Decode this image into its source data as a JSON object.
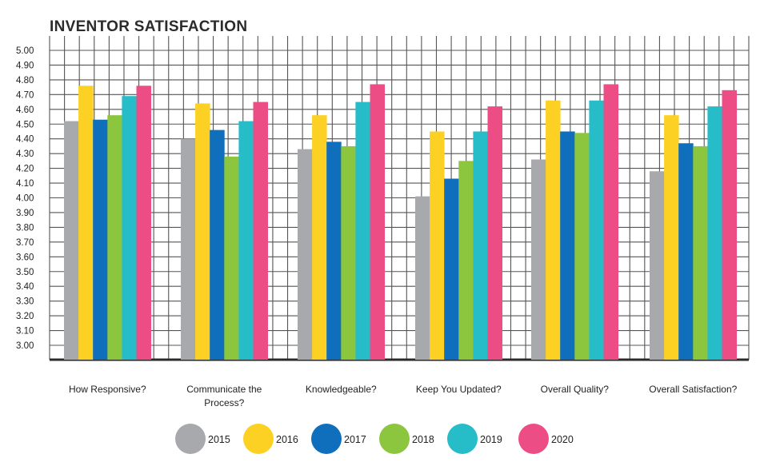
{
  "chart_data": {
    "type": "bar",
    "title": "INVENTOR SATISFACTION",
    "xlabel": "",
    "ylabel": "",
    "ylim": [
      3.0,
      5.0
    ],
    "ytick_step": 0.1,
    "grid": true,
    "legend_position": "bottom",
    "categories": [
      [
        "How Responsive?"
      ],
      [
        "Communicate the",
        "Process?"
      ],
      [
        "Knowledgeable?"
      ],
      [
        "Keep You Updated?"
      ],
      [
        "Overall Quality?"
      ],
      [
        "Overall Satisfaction?"
      ]
    ],
    "series": [
      {
        "name": "2015",
        "color": "#a7a9ac",
        "values": [
          4.52,
          4.4,
          4.33,
          4.01,
          4.26,
          4.18
        ]
      },
      {
        "name": "2016",
        "color": "#fcd124",
        "values": [
          4.76,
          4.64,
          4.56,
          4.45,
          4.66,
          4.56
        ]
      },
      {
        "name": "2017",
        "color": "#0f6fbd",
        "values": [
          4.53,
          4.46,
          4.38,
          4.13,
          4.45,
          4.37
        ]
      },
      {
        "name": "2018",
        "color": "#8cc63f",
        "values": [
          4.56,
          4.28,
          4.35,
          4.25,
          4.44,
          4.35
        ]
      },
      {
        "name": "2019",
        "color": "#26bcc8",
        "values": [
          4.69,
          4.52,
          4.65,
          4.45,
          4.66,
          4.62
        ]
      },
      {
        "name": "2020",
        "color": "#ec4d84",
        "values": [
          4.76,
          4.65,
          4.77,
          4.62,
          4.77,
          4.73
        ]
      }
    ]
  }
}
